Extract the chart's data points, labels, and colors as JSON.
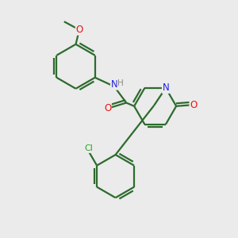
{
  "background_color": "#ebebeb",
  "bond_color": "#2d6b2d",
  "bond_width": 1.6,
  "atom_colors": {
    "N": "#2020dd",
    "O": "#ee1111",
    "Cl": "#22aa22",
    "H": "#888888",
    "C": "#2d6b2d"
  },
  "figsize": [
    3.0,
    3.0
  ],
  "dpi": 100,
  "xlim": [
    0,
    10
  ],
  "ylim": [
    0,
    10
  ]
}
